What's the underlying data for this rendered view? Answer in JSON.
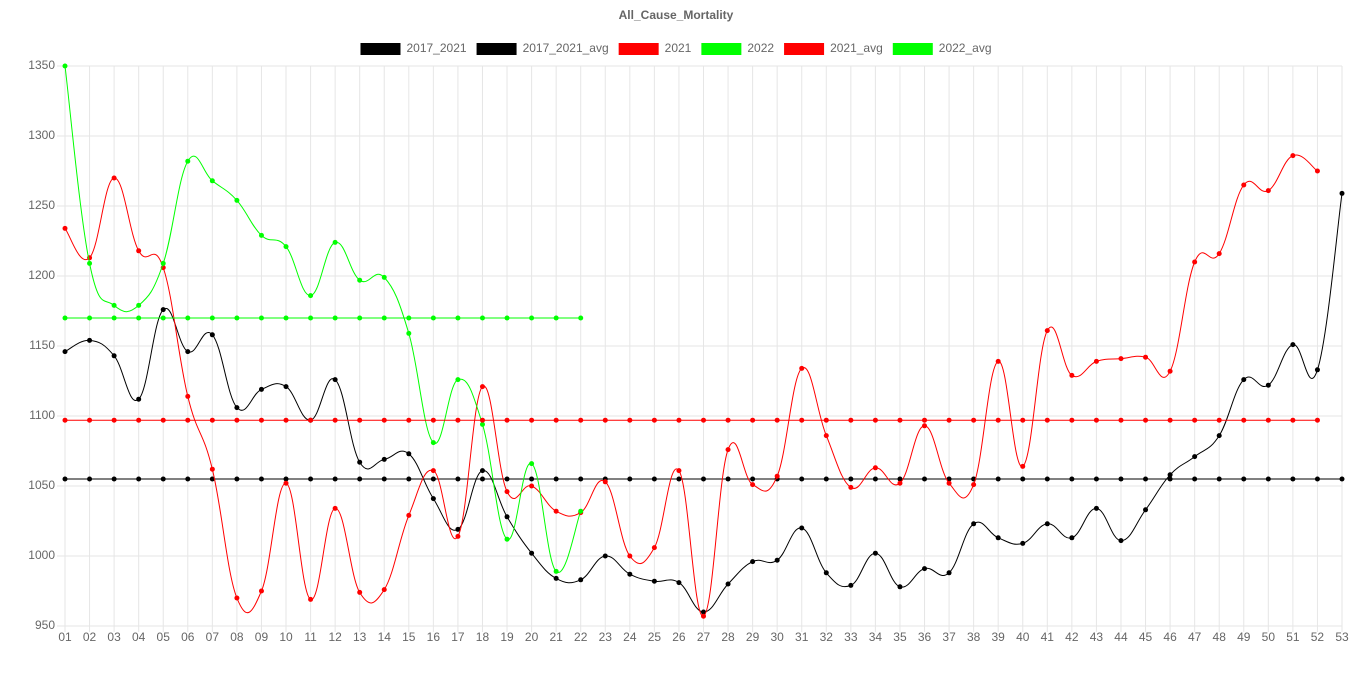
{
  "chart_data": {
    "type": "line",
    "title": "All_Cause_Mortality",
    "categories": [
      "01",
      "02",
      "03",
      "04",
      "05",
      "06",
      "07",
      "08",
      "09",
      "10",
      "11",
      "12",
      "13",
      "14",
      "15",
      "16",
      "17",
      "18",
      "19",
      "20",
      "21",
      "22",
      "23",
      "24",
      "25",
      "26",
      "27",
      "28",
      "29",
      "30",
      "31",
      "32",
      "33",
      "34",
      "35",
      "36",
      "37",
      "38",
      "39",
      "40",
      "41",
      "42",
      "43",
      "44",
      "45",
      "46",
      "47",
      "48",
      "49",
      "50",
      "51",
      "52",
      "53"
    ],
    "ylim": [
      950,
      1350
    ],
    "yticks": [
      950,
      1000,
      1050,
      1100,
      1150,
      1200,
      1250,
      1300,
      1350
    ],
    "grid": true,
    "legend": "top",
    "series": [
      {
        "name": "2017_2021",
        "color": "#000000",
        "values": [
          1146,
          1154,
          1143,
          1112,
          1176,
          1146,
          1158,
          1106,
          1119,
          1121,
          1097,
          1126,
          1067,
          1069,
          1073,
          1041,
          1019,
          1061,
          1028,
          1002,
          984,
          983,
          1000,
          987,
          982,
          981,
          960,
          980,
          996,
          997,
          1020,
          988,
          979,
          1002,
          978,
          991,
          988,
          1023,
          1013,
          1009,
          1023,
          1013,
          1034,
          1011,
          1033,
          1058,
          1071,
          1086,
          1126,
          1122,
          1151,
          1133,
          1259
        ]
      },
      {
        "name": "2017_2021_avg",
        "color": "#000000",
        "values": [
          1055,
          1055,
          1055,
          1055,
          1055,
          1055,
          1055,
          1055,
          1055,
          1055,
          1055,
          1055,
          1055,
          1055,
          1055,
          1055,
          1055,
          1055,
          1055,
          1055,
          1055,
          1055,
          1055,
          1055,
          1055,
          1055,
          1055,
          1055,
          1055,
          1055,
          1055,
          1055,
          1055,
          1055,
          1055,
          1055,
          1055,
          1055,
          1055,
          1055,
          1055,
          1055,
          1055,
          1055,
          1055,
          1055,
          1055,
          1055,
          1055,
          1055,
          1055,
          1055,
          1055
        ]
      },
      {
        "name": "2021",
        "color": "#ff0000",
        "values": [
          1234,
          1213,
          1270,
          1218,
          1206,
          1114,
          1062,
          970,
          975,
          1052,
          969,
          1034,
          974,
          976,
          1029,
          1061,
          1014,
          1121,
          1046,
          1050,
          1032,
          1031,
          1053,
          1000,
          1006,
          1061,
          957,
          1076,
          1051,
          1057,
          1134,
          1086,
          1049,
          1063,
          1052,
          1093,
          1052,
          1051,
          1139,
          1064,
          1161,
          1129,
          1139,
          1141,
          1142,
          1132,
          1210,
          1216,
          1265,
          1261,
          1286,
          1275,
          null
        ]
      },
      {
        "name": "2022",
        "color": "#00ff00",
        "values": [
          1350,
          1209,
          1179,
          1179,
          1209,
          1282,
          1268,
          1254,
          1229,
          1221,
          1186,
          1224,
          1197,
          1199,
          1159,
          1081,
          1126,
          1094,
          1012,
          1066,
          989,
          1032,
          null,
          null,
          null,
          null,
          null,
          null,
          null,
          null,
          null,
          null,
          null,
          null,
          null,
          null,
          null,
          null,
          null,
          null,
          null,
          null,
          null,
          null,
          null,
          null,
          null,
          null,
          null,
          null,
          null,
          null,
          null
        ]
      },
      {
        "name": "2021_avg",
        "color": "#ff0000",
        "values": [
          1097,
          1097,
          1097,
          1097,
          1097,
          1097,
          1097,
          1097,
          1097,
          1097,
          1097,
          1097,
          1097,
          1097,
          1097,
          1097,
          1097,
          1097,
          1097,
          1097,
          1097,
          1097,
          1097,
          1097,
          1097,
          1097,
          1097,
          1097,
          1097,
          1097,
          1097,
          1097,
          1097,
          1097,
          1097,
          1097,
          1097,
          1097,
          1097,
          1097,
          1097,
          1097,
          1097,
          1097,
          1097,
          1097,
          1097,
          1097,
          1097,
          1097,
          1097,
          1097,
          null
        ]
      },
      {
        "name": "2022_avg",
        "color": "#00ff00",
        "values": [
          1170,
          1170,
          1170,
          1170,
          1170,
          1170,
          1170,
          1170,
          1170,
          1170,
          1170,
          1170,
          1170,
          1170,
          1170,
          1170,
          1170,
          1170,
          1170,
          1170,
          1170,
          1170,
          null,
          null,
          null,
          null,
          null,
          null,
          null,
          null,
          null,
          null,
          null,
          null,
          null,
          null,
          null,
          null,
          null,
          null,
          null,
          null,
          null,
          null,
          null,
          null,
          null,
          null,
          null,
          null,
          null,
          null,
          null
        ]
      }
    ]
  }
}
